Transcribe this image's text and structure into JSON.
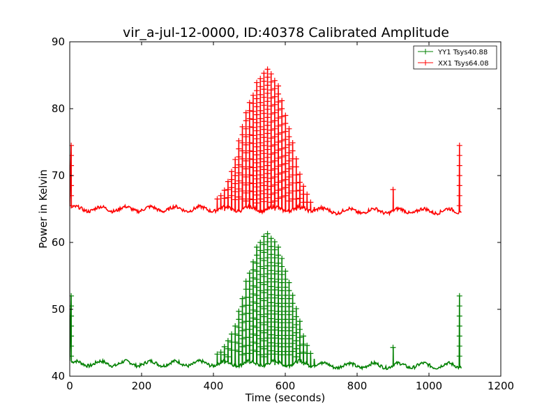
{
  "chart_data": {
    "type": "line",
    "title": "vir_a-jul-12-0000, ID:40378 Calibrated Amplitude",
    "xlabel": "Time (seconds)",
    "ylabel": "Power in Kelvin",
    "xlim": [
      0,
      1200
    ],
    "ylim": [
      40,
      90
    ],
    "xticks": [
      0,
      200,
      400,
      600,
      800,
      1000,
      1200
    ],
    "yticks": [
      40,
      50,
      60,
      70,
      80,
      90
    ],
    "grid": false,
    "legend_position": "top-right",
    "marker": "+",
    "series": [
      {
        "name": "YY1 Tsys40.88",
        "color": "#008000",
        "baseline": 41.9,
        "start_spike": {
          "x": 4,
          "y": 52.0
        },
        "end_spike": {
          "x": 1085,
          "y": 52.0
        },
        "lone_spike": {
          "x": 900,
          "y": 44.3
        },
        "peaks_x": [
          410,
          420,
          430,
          440,
          450,
          460,
          470,
          480,
          490,
          500,
          510,
          520,
          530,
          540,
          550,
          560,
          570,
          580,
          590,
          600,
          610,
          620,
          630,
          640,
          650,
          660,
          670,
          680
        ],
        "peaks_y": [
          43.3,
          43.6,
          44.4,
          45.3,
          46.3,
          47.5,
          49.7,
          51.6,
          54.2,
          55.4,
          57.1,
          59.3,
          60.0,
          60.9,
          61.3,
          60.6,
          60.1,
          59.3,
          57.6,
          55.7,
          54.0,
          52.1,
          50.1,
          48.2,
          46.0,
          44.6,
          43.4,
          42.6
        ]
      },
      {
        "name": "XX1 Tsys64.08",
        "color": "#ff0000",
        "baseline": 65.0,
        "start_spike": {
          "x": 4,
          "y": 74.5
        },
        "end_spike": {
          "x": 1085,
          "y": 74.5
        },
        "lone_spike": {
          "x": 900,
          "y": 67.9
        },
        "peaks_x": [
          410,
          420,
          430,
          440,
          450,
          460,
          470,
          480,
          490,
          500,
          510,
          520,
          530,
          540,
          550,
          560,
          570,
          580,
          590,
          600,
          610,
          620,
          630,
          640,
          650,
          660,
          670,
          680
        ],
        "peaks_y": [
          66.5,
          67.0,
          67.8,
          69.1,
          70.6,
          72.4,
          75.2,
          77.3,
          79.4,
          80.9,
          82.0,
          83.9,
          84.5,
          85.3,
          85.9,
          85.2,
          84.2,
          83.4,
          81.2,
          79.0,
          77.0,
          74.9,
          72.5,
          70.2,
          68.4,
          67.2,
          66.0,
          65.3
        ]
      }
    ]
  }
}
